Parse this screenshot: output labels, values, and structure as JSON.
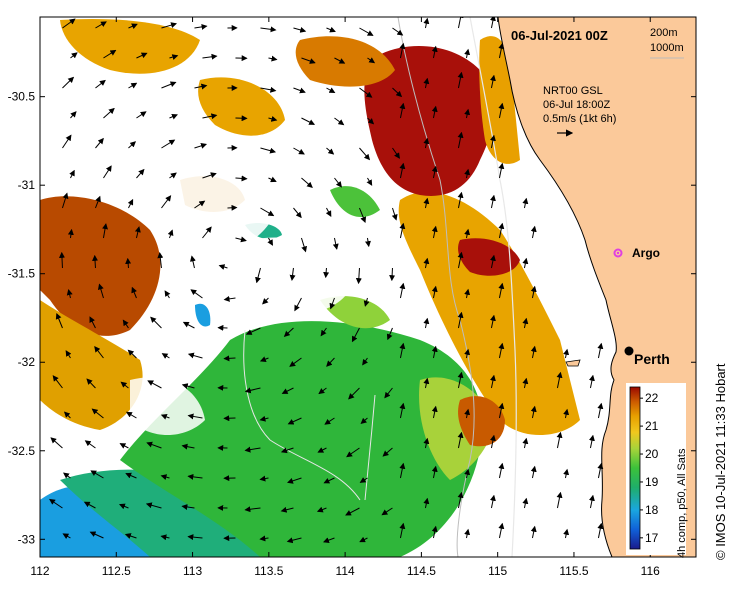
{
  "header": {
    "date": "06-Jul-2021 00Z",
    "isobath_200": "200m",
    "isobath_1000": "1000m"
  },
  "current_info": {
    "line1": "NRT00 GSL",
    "line2": "06-Jul 18:00Z",
    "line3": "0.5m/s (1kt 6h)"
  },
  "places": {
    "perth": "Perth",
    "argo": "Argo"
  },
  "axes": {
    "x_ticks": [
      "112",
      "112.5",
      "113",
      "113.5",
      "114",
      "114.5",
      "115",
      "115.5",
      "116"
    ],
    "y_ticks": [
      "-30.5",
      "-31",
      "-31.5",
      "-32",
      "-32.5",
      "-33"
    ],
    "x_range": [
      112,
      116.3
    ],
    "y_range": [
      -30.05,
      -33.1
    ]
  },
  "colorbar": {
    "ticks": [
      "22",
      "21",
      "20",
      "19",
      "18",
      "17"
    ],
    "label": "4h comp, p50, All Sats",
    "range": [
      16.6,
      22.4
    ]
  },
  "credit": "© IMOS 10-Jul-2021 11:33 Hobart",
  "colors": {
    "land": "#fbc99a",
    "coast": "#000000",
    "hot": "#a80d00",
    "warm": "#e8a800",
    "mid": "#29b02e",
    "cool": "#1a88e0"
  }
}
